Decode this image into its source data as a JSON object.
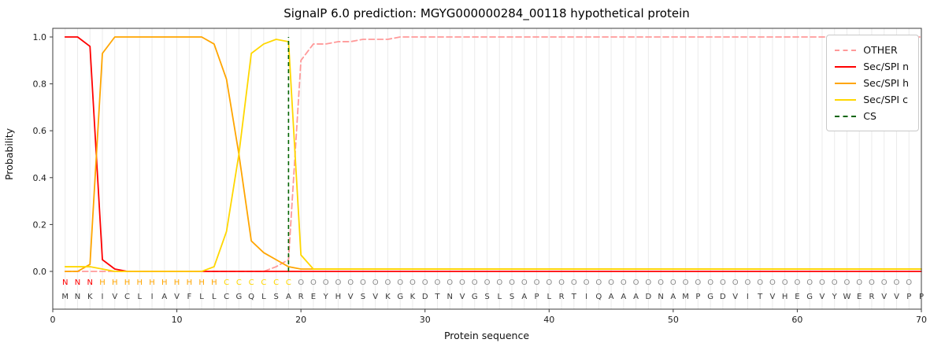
{
  "chart_data": {
    "type": "line",
    "title": "SignalP 6.0 prediction: MGYG000000284_00118 hypothetical protein",
    "xlabel": "Protein sequence",
    "ylabel": "Probability",
    "xlim": [
      0,
      70
    ],
    "ylim": [
      0,
      1.05
    ],
    "x_ticks": [
      0,
      10,
      20,
      30,
      40,
      50,
      60,
      70
    ],
    "y_ticks": [
      "0.0",
      "0.2",
      "0.4",
      "0.6",
      "0.8",
      "1.0"
    ],
    "grid": "vertical line at every residue position",
    "legend_position": "upper right",
    "x": [
      1,
      2,
      3,
      4,
      5,
      6,
      7,
      8,
      9,
      10,
      11,
      12,
      13,
      14,
      15,
      16,
      17,
      18,
      19,
      20,
      21,
      22,
      23,
      24,
      25,
      26,
      27,
      28,
      29,
      30,
      31,
      32,
      33,
      34,
      35,
      36,
      37,
      38,
      39,
      40,
      41,
      42,
      43,
      44,
      45,
      46,
      47,
      48,
      49,
      50,
      51,
      52,
      53,
      54,
      55,
      56,
      57,
      58,
      59,
      60,
      61,
      62,
      63,
      64,
      65,
      66,
      67,
      68,
      69,
      70
    ],
    "series": [
      {
        "name": "OTHER",
        "color": "#ff9999",
        "style": "dashed",
        "values": [
          0,
          0,
          0,
          0,
          0,
          0,
          0,
          0,
          0,
          0,
          0,
          0,
          0,
          0,
          0,
          0,
          0,
          0.02,
          0.05,
          0.9,
          0.97,
          0.97,
          0.98,
          0.98,
          0.99,
          0.99,
          0.99,
          1,
          1,
          1,
          1,
          1,
          1,
          1,
          1,
          1,
          1,
          1,
          1,
          1,
          1,
          1,
          1,
          1,
          1,
          1,
          1,
          1,
          1,
          1,
          1,
          1,
          1,
          1,
          1,
          1,
          1,
          1,
          1,
          1,
          1,
          1,
          1,
          1,
          1,
          1,
          1,
          1,
          1,
          1
        ]
      },
      {
        "name": "Sec/SPI n",
        "color": "#ff0000",
        "style": "solid",
        "values": [
          1,
          1,
          0.96,
          0.05,
          0.01,
          0,
          0,
          0,
          0,
          0,
          0,
          0,
          0,
          0,
          0,
          0,
          0,
          0,
          0,
          0,
          0,
          0,
          0,
          0,
          0,
          0,
          0,
          0,
          0,
          0,
          0,
          0,
          0,
          0,
          0,
          0,
          0,
          0,
          0,
          0,
          0,
          0,
          0,
          0,
          0,
          0,
          0,
          0,
          0,
          0,
          0,
          0,
          0,
          0,
          0,
          0,
          0,
          0,
          0,
          0,
          0,
          0,
          0,
          0,
          0,
          0,
          0,
          0,
          0,
          0
        ]
      },
      {
        "name": "Sec/SPI h",
        "color": "#ffa500",
        "style": "solid",
        "values": [
          0,
          0,
          0.03,
          0.93,
          1,
          1,
          1,
          1,
          1,
          1,
          1,
          1,
          0.97,
          0.82,
          0.5,
          0.13,
          0.08,
          0.05,
          0.02,
          0.01,
          0.01,
          0.01,
          0.01,
          0.01,
          0.01,
          0.01,
          0.01,
          0.01,
          0.01,
          0.01,
          0.01,
          0.01,
          0.01,
          0.01,
          0.01,
          0.01,
          0.01,
          0.01,
          0.01,
          0.01,
          0.01,
          0.01,
          0.01,
          0.01,
          0.01,
          0.01,
          0.01,
          0.01,
          0.01,
          0.01,
          0.01,
          0.01,
          0.01,
          0.01,
          0.01,
          0.01,
          0.01,
          0.01,
          0.01,
          0.01,
          0.01,
          0.01,
          0.01,
          0.01,
          0.01,
          0.01,
          0.01,
          0.01,
          0.01,
          0.01
        ]
      },
      {
        "name": "Sec/SPI c",
        "color": "#ffd700",
        "style": "solid",
        "values": [
          0.02,
          0.02,
          0.02,
          0.01,
          0,
          0,
          0,
          0,
          0,
          0,
          0,
          0,
          0.02,
          0.17,
          0.5,
          0.93,
          0.97,
          0.99,
          0.98,
          0.07,
          0.01,
          0.01,
          0.01,
          0.01,
          0.01,
          0.01,
          0.01,
          0.01,
          0.01,
          0.01,
          0.01,
          0.01,
          0.01,
          0.01,
          0.01,
          0.01,
          0.01,
          0.01,
          0.01,
          0.01,
          0.01,
          0.01,
          0.01,
          0.01,
          0.01,
          0.01,
          0.01,
          0.01,
          0.01,
          0.01,
          0.01,
          0.01,
          0.01,
          0.01,
          0.01,
          0.01,
          0.01,
          0.01,
          0.01,
          0.01,
          0.01,
          0.01,
          0.01,
          0.01,
          0.01,
          0.01,
          0.01,
          0.01,
          0.01,
          0.01
        ]
      }
    ],
    "cs_marker": {
      "label": "CS",
      "position": 19,
      "color": "#006400",
      "style": "dashed"
    },
    "sequence": "MNKIVCLIAVFLLCGQLSAREYHVSVKGKDTNVGSLSAPLRTIQAAADNAMPGDVITVHEGVYWERVVPP",
    "region_labels": "NNNHHHHHHHHHHCCCCCCOOOOOOOOOOOOOOOOOOOOOOOOOOOOOOOOOOOOOOOOOOOOOOOOOO",
    "region_colors": {
      "N": "#ff0000",
      "H": "#ffa500",
      "C": "#ffd700",
      "O": "#8c8c8c"
    },
    "sequence_color": "#3a3a3a",
    "legend": [
      "OTHER",
      "Sec/SPI n",
      "Sec/SPI h",
      "Sec/SPI c",
      "CS"
    ]
  }
}
